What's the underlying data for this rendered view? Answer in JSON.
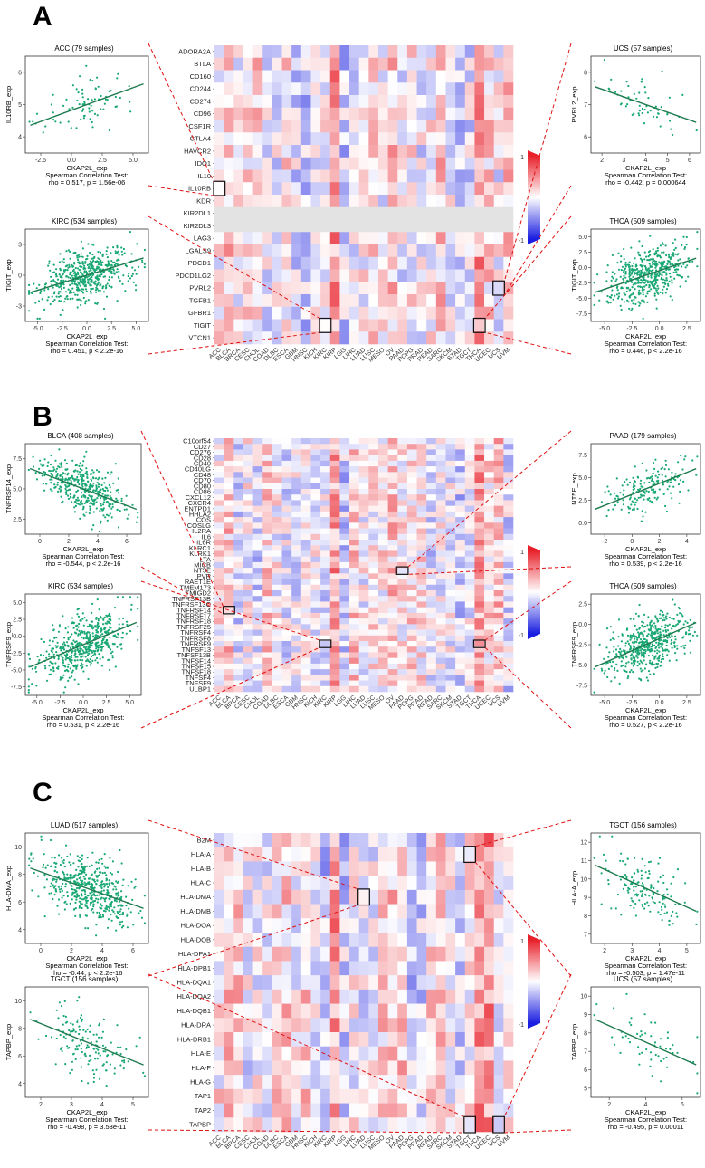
{
  "colors": {
    "pos": "#e8202a",
    "neg": "#1a1ee0",
    "point": "#1aa874",
    "line": "#1f7a4e",
    "link": "#e01010"
  },
  "cancer_types": [
    "ACC",
    "BLCA",
    "BRCA",
    "CESC",
    "CHOL",
    "COAD",
    "DLBC",
    "ESCA",
    "GBM",
    "HNSC",
    "KICH",
    "KIRC",
    "KIRP",
    "LGG",
    "LIHC",
    "LUAD",
    "LUSC",
    "MESO",
    "OV",
    "PAAD",
    "PCPG",
    "PRAD",
    "READ",
    "SARC",
    "SKCM",
    "STAD",
    "TGCT",
    "THCA",
    "UCEC",
    "UCS",
    "UVM"
  ],
  "panels": [
    {
      "letter": "A",
      "heatmap": {
        "genes": [
          "ADORA2A",
          "BTLA",
          "CD160",
          "CD244",
          "CD274",
          "CD96",
          "CSF1R",
          "CTLA4",
          "HAVCR2",
          "IDO1",
          "IL10",
          "IL10RB",
          "KDR",
          "KIR2DL1",
          "KIR2DL3",
          "LAG3",
          "LGALS9",
          "PDCD1",
          "PDCD1LG2",
          "PVRL2",
          "TGFB1",
          "TGFBR1",
          "TIGIT",
          "VTCN1"
        ],
        "legend": {
          "max": "1",
          "min": "-1"
        }
      },
      "scatters": [
        {
          "title": "ACC (79 samples)",
          "xlabel": "CKAP2L_exp",
          "ylabel": "IL10RB_exp",
          "stat1": "Spearman Correlation Test:",
          "stat2": "rho = 0.517, p = 1.56e-06",
          "xticks": [
            "-2.5",
            "0.0",
            "2.5",
            "5.0"
          ],
          "yticks": [
            "4",
            "5",
            "6"
          ],
          "n": 79,
          "rho": 0.517
        },
        {
          "title": "KIRC (534 samples)",
          "xlabel": "CKAP2L_exp",
          "ylabel": "TIGIT_exp",
          "stat1": "Spearman Correlation Test:",
          "stat2": "rho = 0.451, p < 2.2e-16",
          "xticks": [
            "-5.0",
            "-2.5",
            "0.0",
            "2.5",
            "5.0"
          ],
          "yticks": [
            "-3",
            "0",
            "3"
          ],
          "n": 534,
          "rho": 0.451
        },
        {
          "title": "UCS (57 samples)",
          "xlabel": "CKAP2L_exp",
          "ylabel": "PVRL2_exp",
          "stat1": "Spearman Correlation Test:",
          "stat2": "rho = -0.442, p = 0.000644",
          "xticks": [
            "2",
            "3",
            "4",
            "5",
            "6"
          ],
          "yticks": [
            "6",
            "7",
            "8"
          ],
          "n": 57,
          "rho": -0.442
        },
        {
          "title": "THCA (509 samples)",
          "xlabel": "CKAP2L_exp",
          "ylabel": "TIGIT_exp",
          "stat1": "Spearman Correlation Test:",
          "stat2": "rho = 0.446, p < 2.2e-16",
          "xticks": [
            "-5.0",
            "-2.5",
            "0.0",
            "2.5"
          ],
          "yticks": [
            "-7.5",
            "-5.0",
            "-2.5",
            "0.0",
            "2.5",
            "5.0"
          ],
          "n": 509,
          "rho": 0.446
        }
      ]
    },
    {
      "letter": "B",
      "heatmap": {
        "genes": [
          "C10orf54",
          "CD27",
          "CD276",
          "CD28",
          "CD40",
          "CD40LG",
          "CD48",
          "CD70",
          "CD80",
          "CD86",
          "CXCL12",
          "CXCR4",
          "ENTPD1",
          "HHLA2",
          "ICOS",
          "ICOSLG",
          "IL2RA",
          "IL6",
          "IL6R",
          "KLRC1",
          "KLRK1",
          "LTA",
          "MICB",
          "NT5E",
          "PVR",
          "RAET1E",
          "TMEM173",
          "TMIGD2",
          "TNFRSF13B",
          "TNFRSF13C",
          "TNFRSF14",
          "TNFRSF17",
          "TNFRSF18",
          "TNFRSF25",
          "TNFRSF4",
          "TNFRSF8",
          "TNFRSF9",
          "TNFSF13",
          "TNFSF13B",
          "TNFSF14",
          "TNFSF15",
          "TNFSF18",
          "TNFSF4",
          "TNFSF9",
          "ULBP1"
        ],
        "legend": {
          "max": "1",
          "min": "-1"
        }
      },
      "scatters": [
        {
          "title": "BLCA (408 samples)",
          "xlabel": "CKAP2L_exp",
          "ylabel": "TNFRSF14_exp",
          "stat1": "Spearman Correlation Test:",
          "stat2": "rho = -0.544, p < 2.2e-16",
          "xticks": [
            "0",
            "2",
            "4",
            "6"
          ],
          "yticks": [
            "2.5",
            "5.0",
            "7.5"
          ],
          "n": 408,
          "rho": -0.544
        },
        {
          "title": "KIRC (534 samples)",
          "xlabel": "CKAP2L_exp",
          "ylabel": "TNFRSF9_exp",
          "stat1": "Spearman Correlation Test:",
          "stat2": "rho = 0.531, p < 2.2e-16",
          "xticks": [
            "-5.0",
            "-2.5",
            "0.0",
            "2.5",
            "5.0"
          ],
          "yticks": [
            "-7.5",
            "-5.0",
            "-2.5",
            "0.0",
            "2.5",
            "5.0"
          ],
          "n": 534,
          "rho": 0.531
        },
        {
          "title": "PAAD (179 samples)",
          "xlabel": "CKAP2L_exp",
          "ylabel": "NT5E_exp",
          "stat1": "Spearman Correlation Test:",
          "stat2": "rho = 0.539, p < 2.2e-16",
          "xticks": [
            "-2",
            "0",
            "2",
            "4"
          ],
          "yticks": [
            "0.0",
            "2.5",
            "5.0",
            "7.5"
          ],
          "n": 179,
          "rho": 0.539
        },
        {
          "title": "THCA (509 samples)",
          "xlabel": "CKAP2L_exp",
          "ylabel": "TNFRSF9_exp",
          "stat1": "Spearman Correlation Test:",
          "stat2": "rho = 0.527, p < 2.2e-16",
          "xticks": [
            "-5.0",
            "-2.5",
            "0.0",
            "2.5"
          ],
          "yticks": [
            "-7.5",
            "-5.0",
            "-2.5",
            "0.0",
            "2.5"
          ],
          "n": 509,
          "rho": 0.527
        }
      ]
    },
    {
      "letter": "C",
      "heatmap": {
        "genes": [
          "B2M",
          "HLA-A",
          "HLA-B",
          "HLA-C",
          "HLA-DMA",
          "HLA-DMB",
          "HLA-DOA",
          "HLA-DOB",
          "HLA-DPA1",
          "HLA-DPB1",
          "HLA-DQA1",
          "HLA-DQA2",
          "HLA-DQB1",
          "HLA-DRA",
          "HLA-DRB1",
          "HLA-E",
          "HLA-F",
          "HLA-G",
          "TAP1",
          "TAP2",
          "TAPBP"
        ],
        "legend": {
          "max": "1",
          "min": "-1"
        }
      },
      "scatters": [
        {
          "title": "LUAD (517 samples)",
          "xlabel": "CKAP2L_exp",
          "ylabel": "HLA-DMA_exp",
          "stat1": "Spearman Correlation Test:",
          "stat2": "rho = -0.44, p < 2.2e-16",
          "xticks": [
            "0",
            "2",
            "4",
            "6"
          ],
          "yticks": [
            "4",
            "6",
            "8",
            "10"
          ],
          "n": 517,
          "rho": -0.44
        },
        {
          "title": "TGCT (156 samples)",
          "xlabel": "CKAP2L_exp",
          "ylabel": "TAPBP_exp",
          "stat1": "Spearman Correlation Test:",
          "stat2": "rho = -0.498, p = 3.53e-11",
          "xticks": [
            "2",
            "3",
            "4",
            "5"
          ],
          "yticks": [
            "4",
            "6",
            "8",
            "10"
          ],
          "n": 156,
          "rho": -0.498
        },
        {
          "title": "TGCT (156 samples)",
          "xlabel": "CKAP2L_exp",
          "ylabel": "HLA-A_exp",
          "stat1": "Spearman Correlation Test:",
          "stat2": "rho = -0.503, p = 1.47e-11",
          "xticks": [
            "2",
            "3",
            "4",
            "5"
          ],
          "yticks": [
            "7",
            "8",
            "9",
            "10",
            "11",
            "12"
          ],
          "n": 156,
          "rho": -0.503
        },
        {
          "title": "UCS (57 samples)",
          "xlabel": "CKAP2L_exp",
          "ylabel": "TAPBP_exp",
          "stat1": "Spearman Correlation Test:",
          "stat2": "rho = -0.495, p = 0.00011",
          "xticks": [
            "2",
            "4",
            "6"
          ],
          "yticks": [
            "5",
            "6",
            "7",
            "8",
            "9",
            "10"
          ],
          "n": 57,
          "rho": -0.495
        }
      ]
    }
  ],
  "chart_data": {
    "type": "heatmap",
    "description_note": "",
    "panels": [
      {
        "letter": "A",
        "highlighted_cells": [
          {
            "gene": "IL10RB",
            "cancer": "ACC"
          },
          {
            "gene": "TIGIT",
            "cancer": "KIRC"
          },
          {
            "gene": "PVRL2",
            "cancer": "UCS"
          },
          {
            "gene": "TIGIT",
            "cancer": "THCA"
          }
        ]
      },
      {
        "letter": "B",
        "highlighted_cells": [
          {
            "gene": "TNFRSF14",
            "cancer": "BLCA"
          },
          {
            "gene": "TNFRSF9",
            "cancer": "KIRC"
          },
          {
            "gene": "NT5E",
            "cancer": "PAAD"
          },
          {
            "gene": "TNFRSF9",
            "cancer": "THCA"
          }
        ]
      },
      {
        "letter": "C",
        "highlighted_cells": [
          {
            "gene": "HLA-DMA",
            "cancer": "LUAD"
          },
          {
            "gene": "TAPBP",
            "cancer": "TGCT"
          },
          {
            "gene": "HLA-A",
            "cancer": "TGCT"
          },
          {
            "gene": "TAPBP",
            "cancer": "UCS"
          }
        ]
      }
    ],
    "color_scale": {
      "min": -1,
      "max": 1
    }
  }
}
